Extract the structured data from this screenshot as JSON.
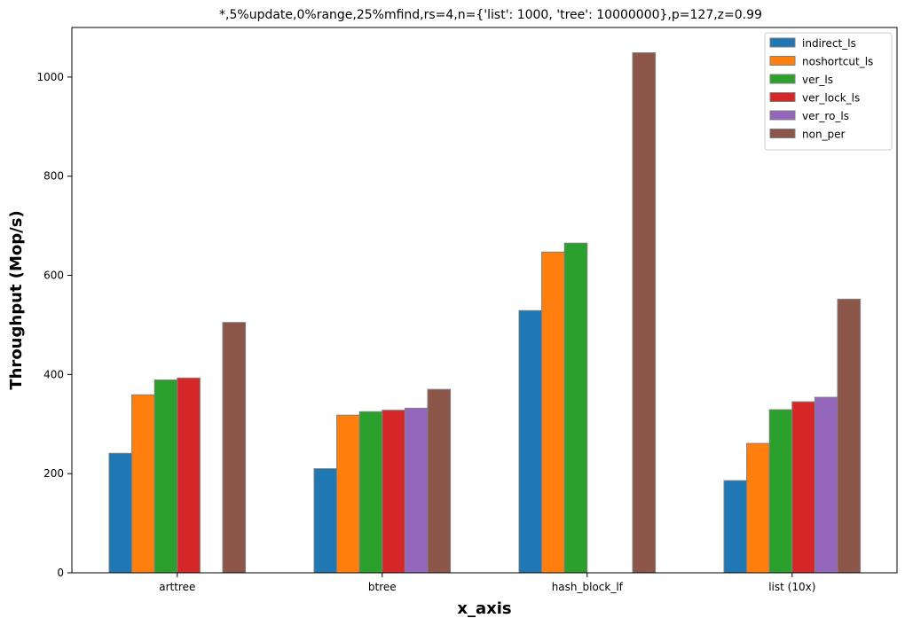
{
  "chart_data": {
    "type": "bar",
    "title": "*,5%update,0%range,25%mfind,rs=4,n={'list': 1000, 'tree': 10000000},p=127,z=0.99",
    "xlabel": "x_axis",
    "ylabel": "Throughput (Mop/s)",
    "categories": [
      "arttree",
      "btree",
      "hash_block_lf",
      "list (10x)"
    ],
    "ylim": [
      0,
      1100
    ],
    "yticks": [
      0,
      200,
      400,
      600,
      800,
      1000
    ],
    "legend_position": "top-right",
    "grid": false,
    "series": [
      {
        "name": "indirect_ls",
        "color": "#1f77b4",
        "values": [
          241,
          210,
          529,
          186
        ]
      },
      {
        "name": "noshortcut_ls",
        "color": "#ff7f0e",
        "values": [
          359,
          318,
          647,
          261
        ]
      },
      {
        "name": "ver_ls",
        "color": "#2ca02c",
        "values": [
          389,
          325,
          665,
          329
        ]
      },
      {
        "name": "ver_lock_ls",
        "color": "#d62728",
        "values": [
          393,
          328,
          0,
          345
        ]
      },
      {
        "name": "ver_ro_ls",
        "color": "#9467bd",
        "values": [
          0,
          332,
          0,
          354
        ]
      },
      {
        "name": "non_per",
        "color": "#8c564b",
        "values": [
          505,
          370,
          1049,
          552
        ]
      }
    ]
  }
}
